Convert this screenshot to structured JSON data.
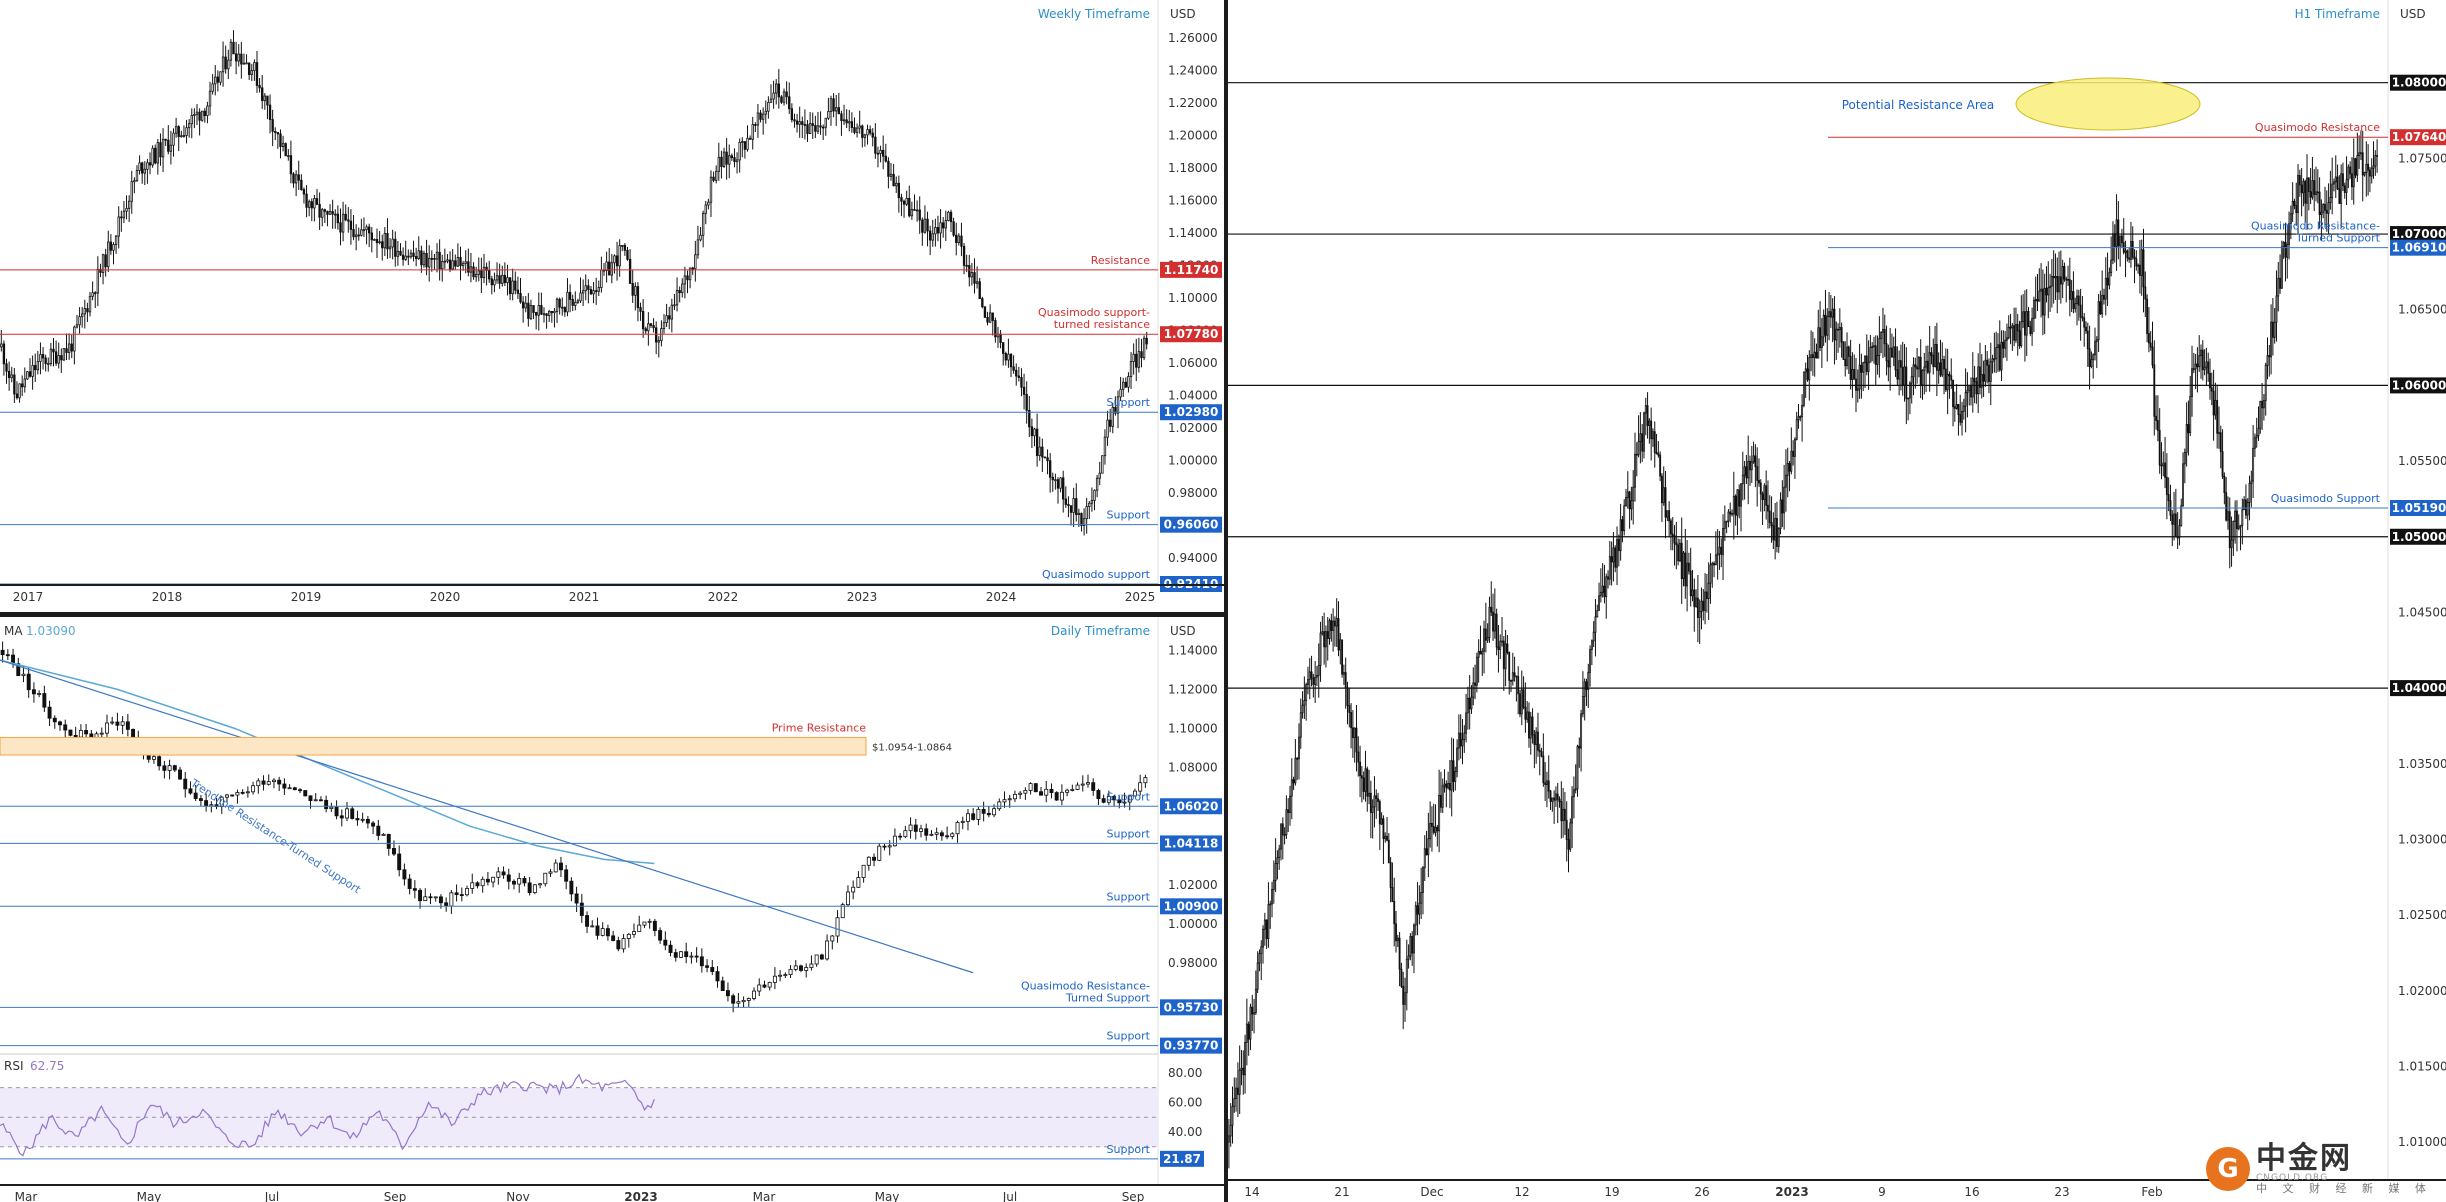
{
  "colors": {
    "up": "#111111",
    "down": "#111111",
    "red": "#d32f2f",
    "blue": "#1e63c9",
    "blueLine": "#3d77c4",
    "black": "#111111",
    "ma": "#5aa9d6",
    "rsi": "#9575cd",
    "rsiBand": "#f0ebfa",
    "zone": "#fde6c5",
    "zoneBorder": "#f4a743",
    "ellipse": "#f9ee7a",
    "ellipseBorder": "#cbbd27",
    "axisText": "#333333"
  },
  "watermark": {
    "brand": "中金网",
    "sub1": "CNGOLD.ORG",
    "sub2": "中 文 财 经 新 媒 体"
  },
  "chart_data": [
    {
      "id": "weekly",
      "type": "candlestick",
      "title": "Weekly Timeframe",
      "currency": "USD",
      "ylim": [
        0.9241,
        1.281
      ],
      "yticks": [
        0.94,
        0.96,
        0.98,
        1.0,
        1.02,
        1.04,
        1.06,
        1.08,
        1.1,
        1.12,
        1.14,
        1.16,
        1.18,
        1.2,
        1.22,
        1.24,
        1.26
      ],
      "ytick_labels": [
        "0.94000",
        "0.96000",
        "0.98000",
        "1.00000",
        "1.02000",
        "1.04000",
        "1.06000",
        "1.08000",
        "1.10000",
        "1.12000",
        "1.14000",
        "1.16000",
        "1.18000",
        "1.20000",
        "1.22000",
        "1.24000",
        "1.26000"
      ],
      "xticks": [
        "2017",
        "2018",
        "2019",
        "2020",
        "2021",
        "2022",
        "2023",
        "2024",
        "2025"
      ],
      "series_path": [
        [
          0,
          1.07
        ],
        [
          3,
          1.04
        ],
        [
          8,
          1.06
        ],
        [
          15,
          1.07
        ],
        [
          22,
          1.12
        ],
        [
          30,
          1.18
        ],
        [
          38,
          1.2
        ],
        [
          45,
          1.22
        ],
        [
          50,
          1.255
        ],
        [
          55,
          1.24
        ],
        [
          60,
          1.2
        ],
        [
          65,
          1.165
        ],
        [
          70,
          1.15
        ],
        [
          80,
          1.14
        ],
        [
          90,
          1.125
        ],
        [
          100,
          1.12
        ],
        [
          110,
          1.11
        ],
        [
          115,
          1.09
        ],
        [
          125,
          1.1
        ],
        [
          130,
          1.11
        ],
        [
          135,
          1.13
        ],
        [
          140,
          1.08
        ],
        [
          143,
          1.075
        ],
        [
          147,
          1.1
        ],
        [
          150,
          1.12
        ],
        [
          155,
          1.18
        ],
        [
          160,
          1.19
        ],
        [
          165,
          1.21
        ],
        [
          168,
          1.23
        ],
        [
          172,
          1.215
        ],
        [
          177,
          1.2
        ],
        [
          181,
          1.22
        ],
        [
          186,
          1.205
        ],
        [
          191,
          1.19
        ],
        [
          196,
          1.16
        ],
        [
          202,
          1.14
        ],
        [
          206,
          1.15
        ],
        [
          210,
          1.12
        ],
        [
          213,
          1.1
        ],
        [
          217,
          1.07
        ],
        [
          221,
          1.05
        ],
        [
          225,
          1.01
        ],
        [
          229,
          0.99
        ],
        [
          232,
          0.975
        ],
        [
          235,
          0.965
        ],
        [
          238,
          0.98
        ],
        [
          240,
          1.02
        ],
        [
          243,
          1.04
        ],
        [
          246,
          1.06
        ],
        [
          249,
          1.072
        ]
      ],
      "levels": [
        {
          "value": 1.1174,
          "badge": "1.11740",
          "label": "Resistance",
          "color": "red"
        },
        {
          "value": 1.0778,
          "badge": "1.07780",
          "label": "Quasimodo support-\nturned resistance",
          "color": "red"
        },
        {
          "value": 1.0298,
          "badge": "1.02980",
          "label": "Support",
          "color": "blue"
        },
        {
          "value": 0.9606,
          "badge": "0.96060",
          "label": "Support",
          "color": "blue"
        },
        {
          "value": 0.9241,
          "badge": "0.92410",
          "label": "Quasimodo support",
          "color": "blue"
        }
      ]
    },
    {
      "id": "daily",
      "type": "candlestick",
      "title": "Daily Timeframe",
      "currency": "USD",
      "ylim": [
        0.937,
        1.155
      ],
      "yticks": [
        0.98,
        1.0,
        1.02,
        1.04,
        1.06,
        1.08,
        1.1,
        1.12,
        1.14
      ],
      "ytick_labels": [
        "0.98000",
        "1.00000",
        "1.02000",
        "1.04000",
        "1.06000",
        "1.08000",
        "1.10000",
        "1.12000",
        "1.14000"
      ],
      "xticks": [
        "Mar",
        "May",
        "Jul",
        "Sep",
        "Nov",
        "2023",
        "Mar",
        "May",
        "Jul",
        "Sep"
      ],
      "ma_label": "MA",
      "ma_value": "1.03090",
      "series_path": [
        [
          0,
          1.14
        ],
        [
          10,
          1.12
        ],
        [
          20,
          1.1
        ],
        [
          30,
          1.095
        ],
        [
          40,
          1.105
        ],
        [
          50,
          1.085
        ],
        [
          60,
          1.075
        ],
        [
          70,
          1.06
        ],
        [
          80,
          1.065
        ],
        [
          90,
          1.075
        ],
        [
          100,
          1.07
        ],
        [
          110,
          1.06
        ],
        [
          120,
          1.055
        ],
        [
          130,
          1.045
        ],
        [
          140,
          1.015
        ],
        [
          150,
          1.01
        ],
        [
          160,
          1.02
        ],
        [
          170,
          1.025
        ],
        [
          180,
          1.018
        ],
        [
          190,
          1.03
        ],
        [
          200,
          1.0
        ],
        [
          210,
          0.99
        ],
        [
          220,
          1.0
        ],
        [
          230,
          0.985
        ],
        [
          240,
          0.98
        ],
        [
          250,
          0.96
        ],
        [
          260,
          0.97
        ],
        [
          270,
          0.975
        ],
        [
          280,
          0.985
        ],
        [
          290,
          1.02
        ],
        [
          300,
          1.04
        ],
        [
          310,
          1.05
        ],
        [
          320,
          1.045
        ],
        [
          330,
          1.055
        ],
        [
          340,
          1.06
        ],
        [
          350,
          1.07
        ],
        [
          360,
          1.065
        ],
        [
          370,
          1.07
        ],
        [
          380,
          1.06
        ],
        [
          390,
          1.072
        ]
      ],
      "ma_path": [
        [
          0,
          1.135
        ],
        [
          70,
          1.12
        ],
        [
          140,
          1.1
        ],
        [
          210,
          1.075
        ],
        [
          280,
          1.05
        ],
        [
          320,
          1.04
        ],
        [
          360,
          1.033
        ],
        [
          390,
          1.0309
        ]
      ],
      "trendline": {
        "from": [
          0,
          1.135
        ],
        "to": [
          400,
          0.975
        ],
        "label": "Trendline Resistance-Turned Support"
      },
      "zone": {
        "from": 1.0954,
        "to": 1.0864,
        "label": "Prime Resistance",
        "range_label": "$1.0954-1.0864"
      },
      "levels": [
        {
          "value": 1.0602,
          "badge": "1.06020",
          "label": "Support",
          "color": "blue"
        },
        {
          "value": 1.04118,
          "badge": "1.04118",
          "label": "Support",
          "color": "blue"
        },
        {
          "value": 1.009,
          "badge": "1.00900",
          "label": "Support",
          "color": "blue"
        },
        {
          "value": 0.9573,
          "badge": "0.95730",
          "label": "Quasimodo Resistance-\nTurned Support",
          "color": "blue"
        },
        {
          "value": 0.9377,
          "badge": "0.93770",
          "label": "Support",
          "color": "blue"
        }
      ],
      "rsi": {
        "label": "RSI",
        "value": "62.75",
        "ylim": [
          15,
          90
        ],
        "yticks": [
          40,
          60,
          80
        ],
        "ytick_labels": [
          "40.00",
          "60.00",
          "80.00"
        ],
        "upper": 70,
        "lower": 30,
        "support": 21.87,
        "support_badge": "21.87",
        "support_label": "Support",
        "path": [
          [
            0,
            45
          ],
          [
            15,
            25
          ],
          [
            30,
            50
          ],
          [
            45,
            35
          ],
          [
            60,
            55
          ],
          [
            75,
            30
          ],
          [
            90,
            60
          ],
          [
            105,
            45
          ],
          [
            120,
            55
          ],
          [
            135,
            35
          ],
          [
            150,
            30
          ],
          [
            165,
            55
          ],
          [
            180,
            40
          ],
          [
            195,
            50
          ],
          [
            210,
            35
          ],
          [
            225,
            55
          ],
          [
            240,
            30
          ],
          [
            255,
            60
          ],
          [
            270,
            45
          ],
          [
            285,
            65
          ],
          [
            300,
            70
          ],
          [
            315,
            72
          ],
          [
            330,
            68
          ],
          [
            345,
            75
          ],
          [
            360,
            70
          ],
          [
            375,
            72
          ],
          [
            385,
            55
          ],
          [
            390,
            62.75
          ]
        ]
      }
    },
    {
      "id": "h1",
      "type": "candlestick",
      "title": "H1 Timeframe",
      "currency": "USD",
      "ylim": [
        1.0075,
        1.0852
      ],
      "yticks": [
        1.01,
        1.015,
        1.02,
        1.025,
        1.03,
        1.035,
        1.04,
        1.045,
        1.05,
        1.055,
        1.06,
        1.065,
        1.07,
        1.075
      ],
      "ytick_labels": [
        "1.01000",
        "1.01500",
        "1.02000",
        "1.02500",
        "1.03000",
        "1.03500",
        "1.04000",
        "1.04500",
        "1.05000",
        "1.05500",
        "1.06000",
        "1.06500",
        "1.07000",
        "1.07500"
      ],
      "xticks": [
        "14",
        "21",
        "Dec",
        "12",
        "19",
        "26",
        "2023",
        "9",
        "16",
        "23",
        "Feb"
      ],
      "series_path": [
        [
          0,
          1.01
        ],
        [
          3,
          1.02
        ],
        [
          6,
          1.03
        ],
        [
          9,
          1.04
        ],
        [
          12,
          1.045
        ],
        [
          15,
          1.035
        ],
        [
          18,
          1.03
        ],
        [
          20,
          1.02
        ],
        [
          23,
          1.03
        ],
        [
          26,
          1.035
        ],
        [
          30,
          1.045
        ],
        [
          33,
          1.04
        ],
        [
          36,
          1.035
        ],
        [
          39,
          1.03
        ],
        [
          42,
          1.045
        ],
        [
          45,
          1.05
        ],
        [
          48,
          1.058
        ],
        [
          51,
          1.05
        ],
        [
          54,
          1.045
        ],
        [
          57,
          1.05
        ],
        [
          60,
          1.055
        ],
        [
          63,
          1.05
        ],
        [
          66,
          1.06
        ],
        [
          69,
          1.065
        ],
        [
          72,
          1.06
        ],
        [
          75,
          1.063
        ],
        [
          78,
          1.06
        ],
        [
          81,
          1.062
        ],
        [
          84,
          1.058
        ],
        [
          87,
          1.061
        ],
        [
          90,
          1.063
        ],
        [
          93,
          1.065
        ],
        [
          96,
          1.068
        ],
        [
          99,
          1.062
        ],
        [
          102,
          1.07
        ],
        [
          105,
          1.068
        ],
        [
          107,
          1.055
        ],
        [
          109,
          1.05
        ],
        [
          111,
          1.062
        ],
        [
          113,
          1.06
        ],
        [
          115,
          1.05
        ],
        [
          117,
          1.052
        ],
        [
          119,
          1.06
        ],
        [
          121,
          1.068
        ],
        [
          123,
          1.073
        ],
        [
          126,
          1.072
        ],
        [
          129,
          1.074
        ],
        [
          132,
          1.075
        ]
      ],
      "levels": [
        {
          "value": 1.08,
          "badge": "1.08000",
          "label": "",
          "color": "black"
        },
        {
          "value": 1.0764,
          "badge": "1.07640",
          "label": "Quasimodo Resistance",
          "color": "red"
        },
        {
          "value": 1.07,
          "badge": "1.07000",
          "label": "",
          "color": "black"
        },
        {
          "value": 1.0691,
          "badge": "1.06910",
          "label": "Quasimodo Resistance-\nTurned Support",
          "color": "blue"
        },
        {
          "value": 1.06,
          "badge": "1.06000",
          "label": "",
          "color": "black"
        },
        {
          "value": 1.0519,
          "badge": "1.05190",
          "label": "Quasimodo Support",
          "color": "blue"
        },
        {
          "value": 1.05,
          "badge": "1.05000",
          "label": "",
          "color": "black"
        },
        {
          "value": 1.04,
          "badge": "1.04000",
          "label": "",
          "color": "black"
        }
      ],
      "annotation": {
        "label": "Potential Resistance Area"
      }
    }
  ]
}
